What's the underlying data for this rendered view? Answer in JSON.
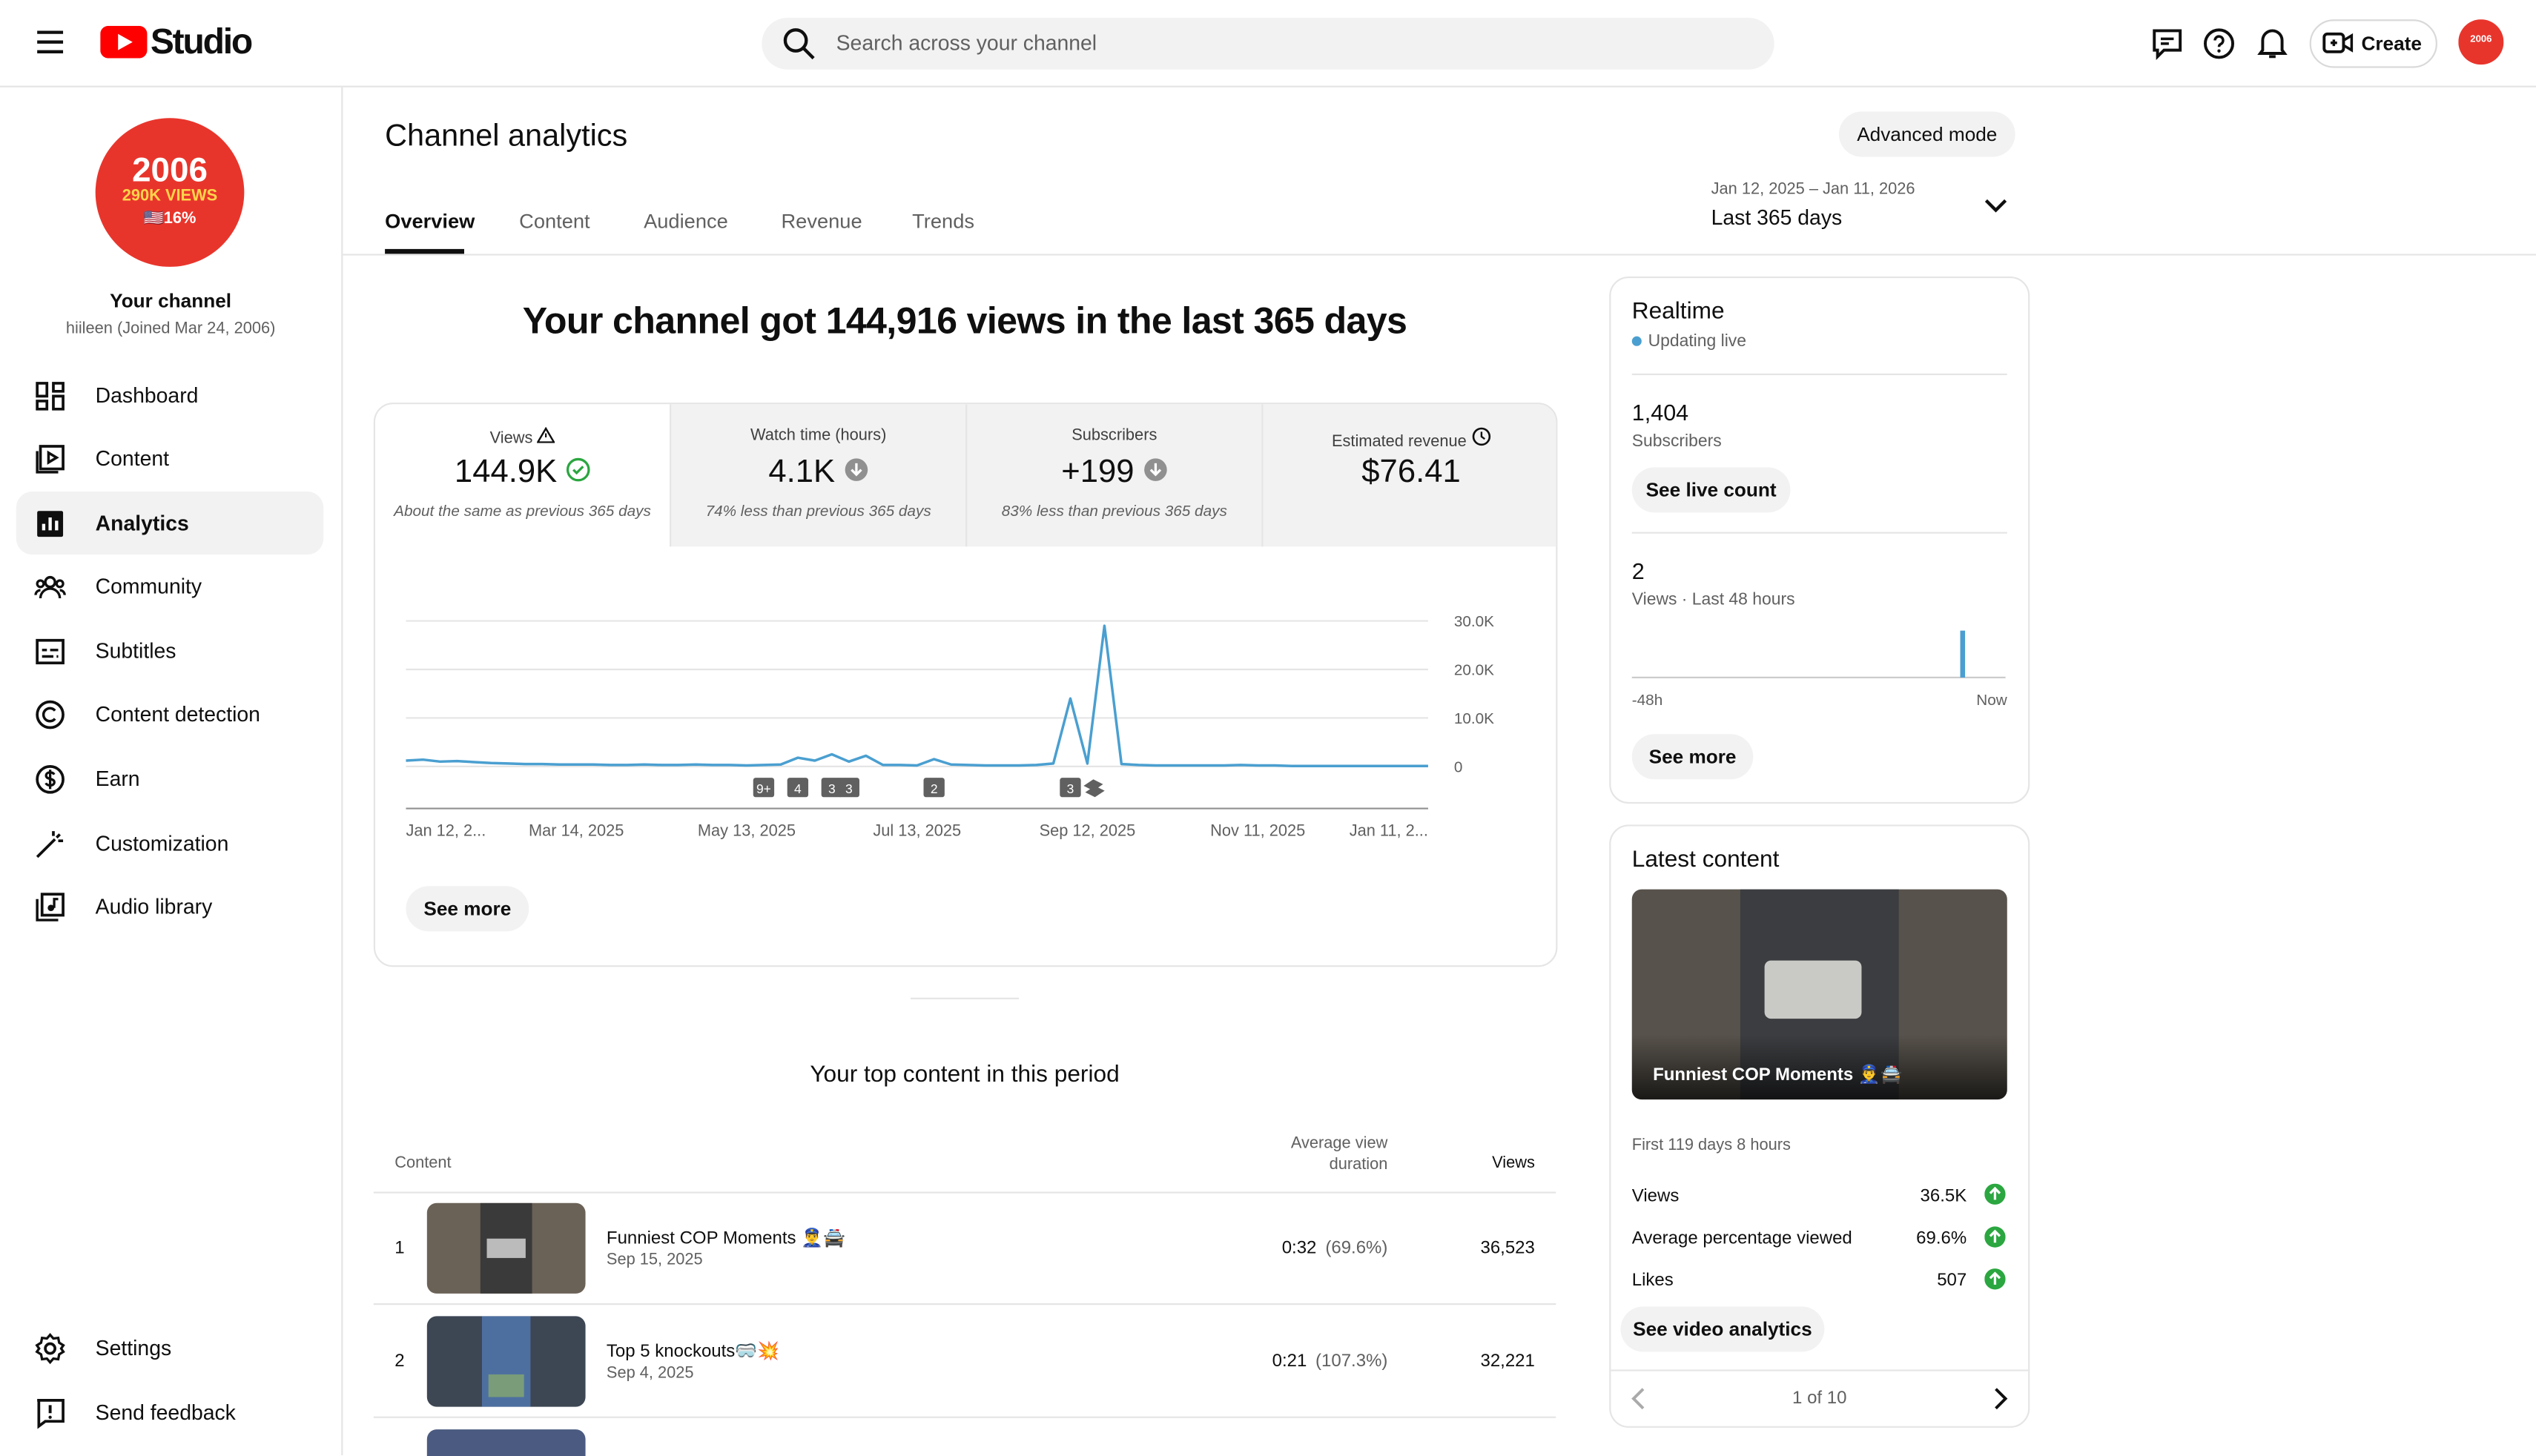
{
  "header": {
    "logo": "Studio",
    "search_placeholder": "Search across your channel",
    "create": "Create"
  },
  "sidebar": {
    "avatar_lines": [
      "2006",
      "290K VIEWS",
      "🇺🇸16%"
    ],
    "channel_name": "Your channel",
    "handle": "hiileen (Joined Mar 24, 2006)",
    "nav": [
      "Dashboard",
      "Content",
      "Analytics",
      "Community",
      "Subtitles",
      "Content detection",
      "Earn",
      "Customization",
      "Audio library"
    ],
    "bottom": [
      "Settings",
      "Send feedback"
    ]
  },
  "page": {
    "title": "Channel analytics",
    "advanced": "Advanced mode",
    "tabs": [
      "Overview",
      "Content",
      "Audience",
      "Revenue",
      "Trends"
    ],
    "date_range": "Jan 12, 2025 – Jan 11, 2026",
    "period": "Last 365 days"
  },
  "summary": {
    "headline": "Your channel got 144,916 views in the last 365 days",
    "metrics": [
      {
        "label": "Views",
        "value": "144.9K",
        "note": "About the same as previous 365 days"
      },
      {
        "label": "Watch time (hours)",
        "value": "4.1K",
        "note": "74% less than previous 365 days"
      },
      {
        "label": "Subscribers",
        "value": "+199",
        "note": "83% less than previous 365 days"
      },
      {
        "label": "Estimated revenue",
        "value": "$76.41"
      }
    ],
    "see_more": "See more"
  },
  "chart_data": {
    "type": "line",
    "color": "#4a9fd0",
    "grid": true,
    "ylim": [
      0,
      30000
    ],
    "yticks": [
      {
        "value": 30000,
        "label": "30.0K"
      },
      {
        "value": 20000,
        "label": "20.0K"
      },
      {
        "value": 10000,
        "label": "10.0K"
      },
      0
    ],
    "categories": [
      "Jan 12, 2...",
      null,
      null,
      null,
      null,
      null,
      null,
      null,
      null,
      null,
      "Mar 14, 2025",
      null,
      null,
      null,
      null,
      null,
      null,
      null,
      null,
      null,
      "May 13, 2025",
      null,
      null,
      null,
      null,
      null,
      null,
      null,
      null,
      null,
      "Jul 13, 2025",
      null,
      null,
      null,
      null,
      null,
      null,
      null,
      null,
      null,
      "Sep 12, 2025",
      null,
      null,
      null,
      null,
      null,
      null,
      null,
      null,
      null,
      "Nov 11, 2025",
      null,
      null,
      null,
      null,
      null,
      null,
      null,
      null,
      null,
      "Jan 11, 2..."
    ],
    "values": [
      1200,
      1400,
      1000,
      1100,
      900,
      700,
      600,
      500,
      500,
      400,
      400,
      400,
      300,
      300,
      400,
      300,
      300,
      400,
      300,
      300,
      200,
      300,
      400,
      1800,
      1200,
      2500,
      1000,
      2200,
      300,
      300,
      200,
      1500,
      400,
      300,
      200,
      200,
      200,
      300,
      600,
      14000,
      600,
      29000,
      500,
      300,
      200,
      200,
      200,
      200,
      200,
      300,
      200,
      200,
      100,
      100,
      100,
      100,
      100,
      100,
      100,
      100,
      100
    ],
    "annotations": [
      {
        "index": 21,
        "label": "9+"
      },
      {
        "index": 23,
        "label": "4"
      },
      {
        "index": 25,
        "label": "3"
      },
      {
        "index": 26,
        "label": "3"
      },
      {
        "index": 31,
        "label": "2"
      },
      {
        "index": 39,
        "label": "3"
      }
    ]
  },
  "top_content": {
    "title": "Your top content in this period",
    "columns": [
      "Content",
      "Average view duration",
      "Views"
    ],
    "rows": [
      {
        "rank": "1",
        "title": "Funniest COP Moments 👮‍♂️🚔",
        "date": "Sep 15, 2025",
        "duration": "0:32",
        "percent": "(69.6%)",
        "views": "36,523"
      },
      {
        "rank": "2",
        "title": "Top 5 knockouts🥽💥",
        "date": "Sep 4, 2025",
        "duration": "0:21",
        "percent": "(107.3%)",
        "views": "32,221"
      }
    ]
  },
  "realtime": {
    "title": "Realtime",
    "status": "Updating live",
    "subscribers": "1,404",
    "subscribers_label": "Subscribers",
    "live_count": "See live count",
    "views": 2,
    "views_label": "Views · Last 48 hours",
    "axis_start": "-48h",
    "axis_end": "Now",
    "see_more": "See more"
  },
  "latest": {
    "title": "Latest content",
    "video_title": "Funniest COP Moments 👮‍♂️🚔",
    "period": "First 119 days 8 hours",
    "stats": [
      {
        "label": "Views",
        "value": "36.5K"
      },
      {
        "label": "Average percentage viewed",
        "value": "69.6%"
      },
      {
        "label": "Likes",
        "value": "507"
      }
    ],
    "button": "See video analytics",
    "pager": "1 of 10"
  }
}
